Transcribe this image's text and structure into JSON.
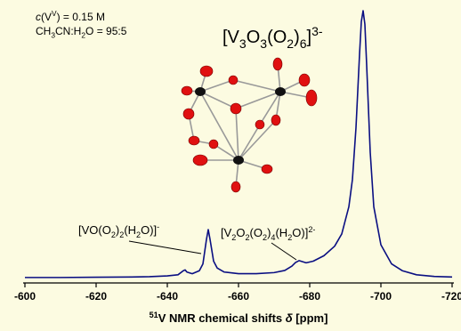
{
  "chart_data": {
    "type": "line",
    "x": [
      -600,
      -610,
      -620,
      -630,
      -635,
      -640,
      -643,
      -644.5,
      -645,
      -645.5,
      -647,
      -649,
      -650,
      -651,
      -651.5,
      -652,
      -653,
      -654,
      -656,
      -660,
      -665,
      -670,
      -673,
      -675,
      -676,
      -677,
      -678,
      -679,
      -681,
      -684,
      -687,
      -689,
      -691,
      -692,
      -693,
      -694,
      -694.5,
      -695,
      -695.5,
      -696,
      -697,
      -698,
      -700,
      -703,
      -706,
      -710,
      -715,
      -720
    ],
    "values": [
      2,
      2,
      2.1,
      2.2,
      2.3,
      2.6,
      3,
      4.5,
      4.8,
      4,
      3.4,
      4.5,
      7,
      16,
      19.6,
      16,
      8,
      5.5,
      4,
      3.4,
      3.4,
      3.8,
      4.6,
      6.2,
      7.5,
      8.2,
      7.8,
      7.4,
      8,
      10,
      13.5,
      18,
      28,
      38,
      57,
      84,
      96,
      100,
      95,
      80,
      48,
      28,
      14,
      7,
      4.5,
      3,
      2.4,
      2.2
    ],
    "color": "#0a0f82",
    "xlim": [
      -600,
      -720
    ],
    "xticks": [
      -600,
      -620,
      -640,
      -660,
      -680,
      -700,
      -720
    ],
    "ylim": [
      0,
      100
    ],
    "x_label": [
      {
        "sup": "51"
      },
      {
        "t": "V NMR chemical shifts "
      },
      {
        "i": "δ"
      },
      {
        "t": " [ppm]"
      }
    ],
    "annotations": [
      [
        {
          "i": "c"
        },
        {
          "t": "(V"
        },
        {
          "sup": "V"
        },
        {
          "t": ") = 0.15 M"
        }
      ],
      [
        {
          "t": "CH"
        },
        {
          "sub": "3"
        },
        {
          "t": "CN:H"
        },
        {
          "sub": "2"
        },
        {
          "t": "O = 95:5"
        }
      ],
      [
        {
          "t": "[V"
        },
        {
          "sub": "3"
        },
        {
          "t": "O"
        },
        {
          "sub": "3"
        },
        {
          "t": "(O"
        },
        {
          "sub": "2"
        },
        {
          "t": ")"
        },
        {
          "sub": "6"
        },
        {
          "t": "]"
        },
        {
          "sup": "3-"
        }
      ],
      [
        {
          "t": "[VO(O"
        },
        {
          "sub": "2"
        },
        {
          "t": ")"
        },
        {
          "sub": "2"
        },
        {
          "t": "(H"
        },
        {
          "sub": "2"
        },
        {
          "t": "O)]"
        },
        {
          "sup": "-"
        }
      ],
      [
        {
          "t": "[V"
        },
        {
          "sub": "2"
        },
        {
          "t": "O"
        },
        {
          "sub": "2"
        },
        {
          "t": "(O"
        },
        {
          "sub": "2"
        },
        {
          "t": ")"
        },
        {
          "sub": "4"
        },
        {
          "t": "(H"
        },
        {
          "sub": "2"
        },
        {
          "t": "O)]"
        },
        {
          "sup": "2-"
        }
      ]
    ]
  }
}
